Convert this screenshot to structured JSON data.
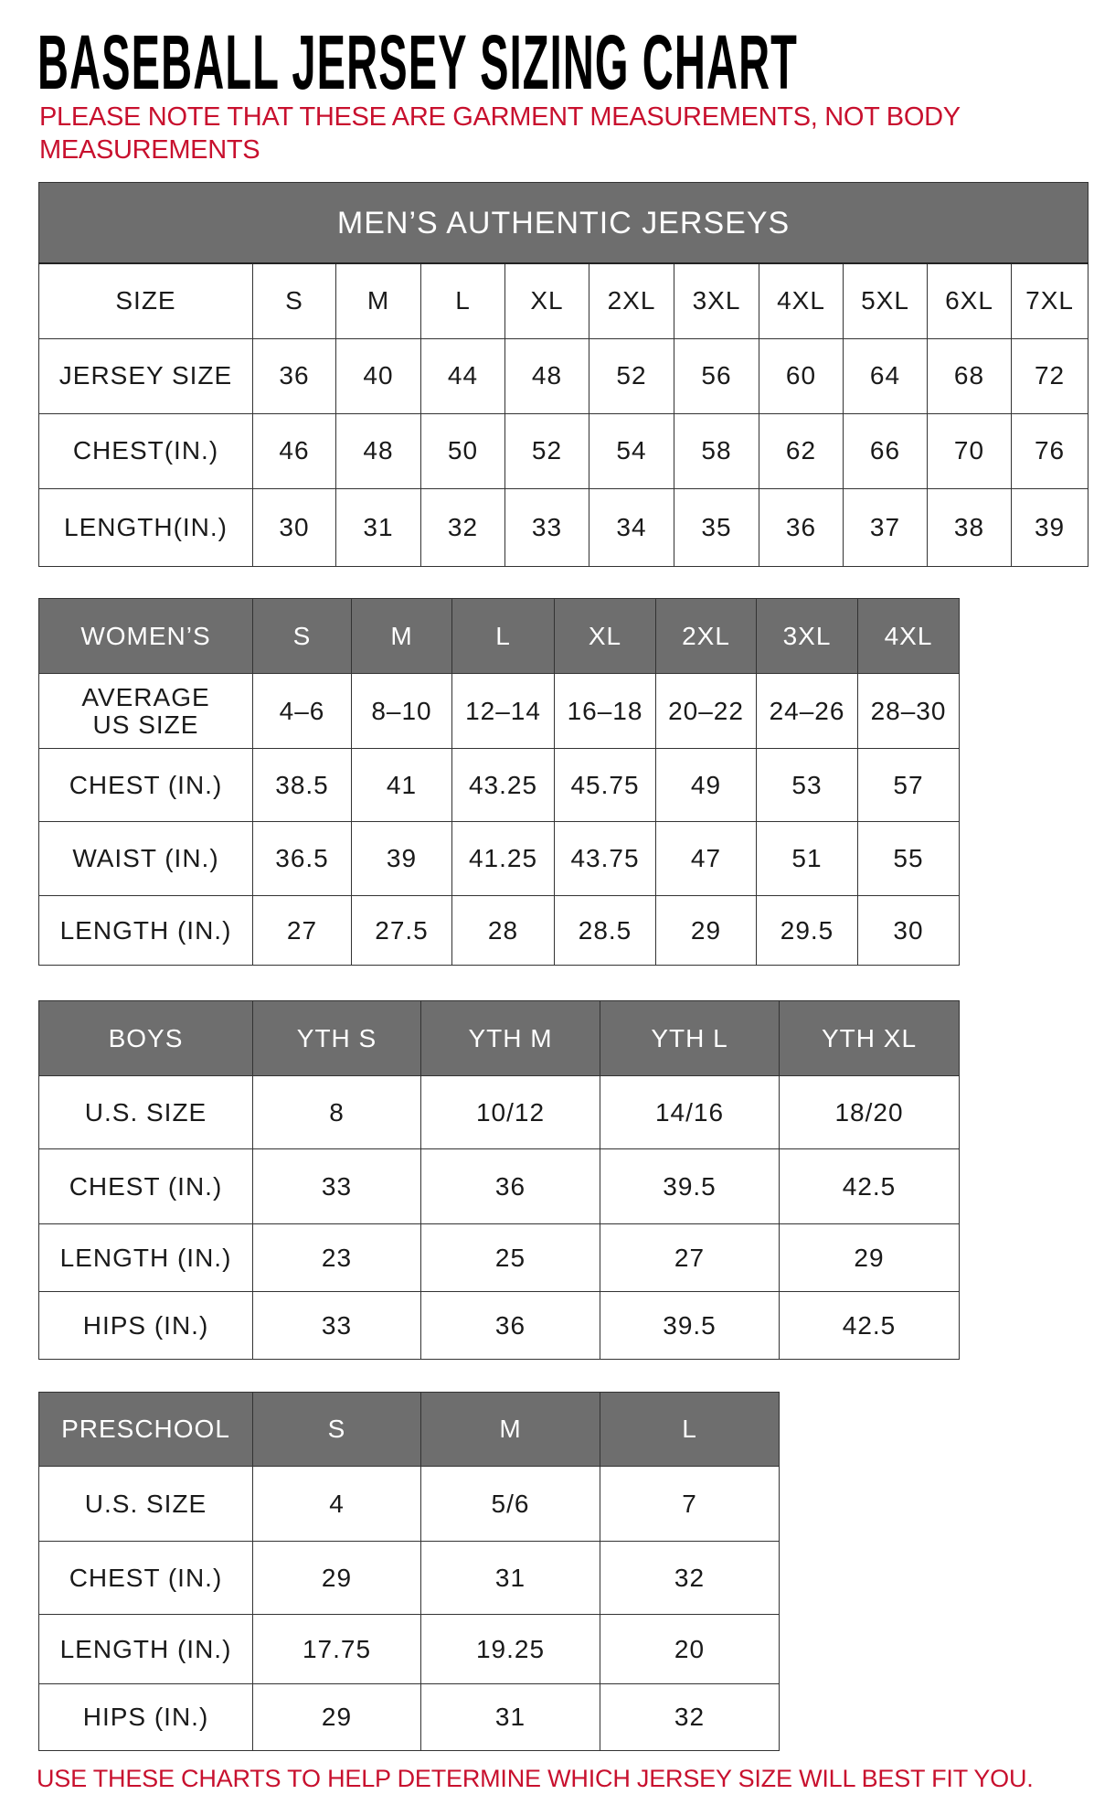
{
  "title": "BASEBALL JERSEY SIZING CHART",
  "note": "PLEASE NOTE THAT THESE ARE GARMENT MEASUREMENTS, NOT BODY MEASUREMENTS",
  "footer": "USE THESE CHARTS TO HELP DETERMINE WHICH JERSEY SIZE WILL BEST FIT YOU.",
  "colors": {
    "header_bg": "#6e6e6e",
    "accent_red": "#c8102e"
  },
  "tables": [
    {
      "id": "mens",
      "caption": "MEN’S AUTHENTIC JERSEYS",
      "header_row": [
        "SIZE",
        "S",
        "M",
        "L",
        "XL",
        "2XL",
        "3XL",
        "4XL",
        "5XL",
        "6XL",
        "7XL"
      ],
      "header_dark": false,
      "rows": [
        [
          "JERSEY SIZE",
          "36",
          "40",
          "44",
          "48",
          "52",
          "56",
          "60",
          "64",
          "68",
          "72"
        ],
        [
          "CHEST(IN.)",
          "46",
          "48",
          "50",
          "52",
          "54",
          "58",
          "62",
          "66",
          "70",
          "76"
        ],
        [
          "LENGTH(IN.)",
          "30",
          "31",
          "32",
          "33",
          "34",
          "35",
          "36",
          "37",
          "38",
          "39"
        ]
      ]
    },
    {
      "id": "womens",
      "header_row": [
        "WOMEN’S",
        "S",
        "M",
        "L",
        "XL",
        "2XL",
        "3XL",
        "4XL"
      ],
      "header_dark": true,
      "rows": [
        [
          "AVERAGE\nUS SIZE",
          "4–6",
          "8–10",
          "12–14",
          "16–18",
          "20–22",
          "24–26",
          "28–30"
        ],
        [
          "CHEST (IN.)",
          "38.5",
          "41",
          "43.25",
          "45.75",
          "49",
          "53",
          "57"
        ],
        [
          "WAIST (IN.)",
          "36.5",
          "39",
          "41.25",
          "43.75",
          "47",
          "51",
          "55"
        ],
        [
          "LENGTH (IN.)",
          "27",
          "27.5",
          "28",
          "28.5",
          "29",
          "29.5",
          "30"
        ]
      ]
    },
    {
      "id": "boys",
      "header_row": [
        "BOYS",
        "YTH S",
        "YTH M",
        "YTH L",
        "YTH XL"
      ],
      "header_dark": true,
      "rows": [
        [
          "U.S. SIZE",
          "8",
          "10/12",
          "14/16",
          "18/20"
        ],
        [
          "CHEST (IN.)",
          "33",
          "36",
          "39.5",
          "42.5"
        ],
        [
          "LENGTH (IN.)",
          "23",
          "25",
          "27",
          "29"
        ],
        [
          "HIPS (IN.)",
          "33",
          "36",
          "39.5",
          "42.5"
        ]
      ]
    },
    {
      "id": "preschool",
      "header_row": [
        "PRESCHOOL",
        "S",
        "M",
        "L"
      ],
      "header_dark": true,
      "rows": [
        [
          "U.S. SIZE",
          "4",
          "5/6",
          "7"
        ],
        [
          "CHEST (IN.)",
          "29",
          "31",
          "32"
        ],
        [
          "LENGTH (IN.)",
          "17.75",
          "19.25",
          "20"
        ],
        [
          "HIPS (IN.)",
          "29",
          "31",
          "32"
        ]
      ]
    }
  ]
}
